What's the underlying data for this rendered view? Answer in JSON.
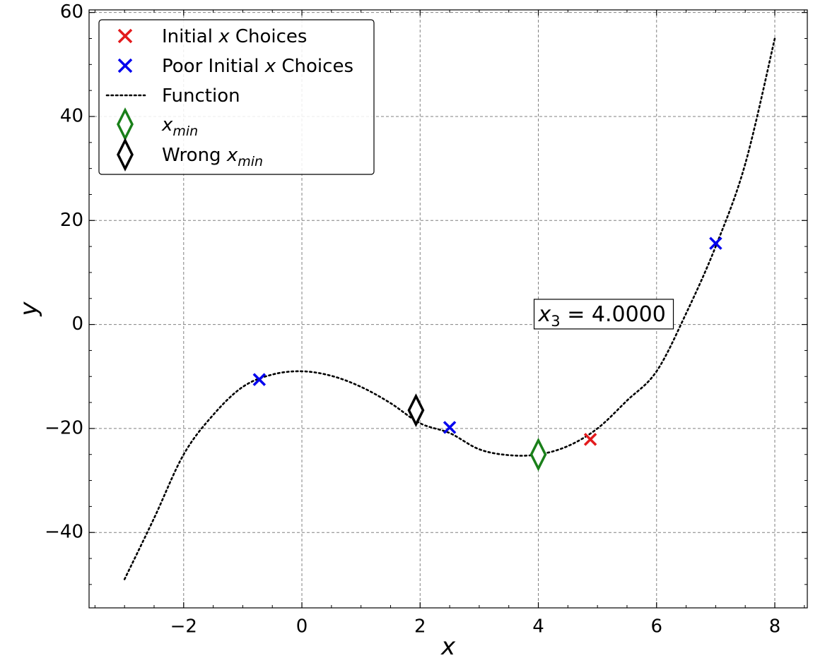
{
  "chart_data": {
    "type": "line",
    "title": "",
    "xlabel": "x",
    "ylabel": "y",
    "xlim": [
      -3.6,
      8.55
    ],
    "ylim": [
      -54.5,
      60.5
    ],
    "xticks": [
      -2,
      0,
      2,
      4,
      6,
      8
    ],
    "yticks": [
      -40,
      -20,
      0,
      20,
      40,
      60
    ],
    "xtick_labels": [
      "−2",
      "0",
      "2",
      "4",
      "6",
      "8"
    ],
    "ytick_labels": [
      "−40",
      "−20",
      "0",
      "20",
      "40",
      "60"
    ],
    "grid": true,
    "legend_position": "top-left",
    "function": {
      "name": "Function",
      "style": "dotted",
      "color": "#000000",
      "x": [
        -3.0,
        -2.5,
        -2.0,
        -1.5,
        -1.0,
        -0.5,
        0.0,
        0.5,
        1.0,
        1.5,
        2.0,
        2.5,
        3.0,
        3.5,
        4.0,
        4.5,
        5.0,
        5.5,
        6.0,
        6.5,
        7.0,
        7.5,
        8.0
      ],
      "y": [
        -49,
        -37.25,
        -25,
        -17.38,
        -12,
        -9.63,
        -9,
        -9.88,
        -12,
        -15.13,
        -19,
        -20.88,
        -24,
        -25.13,
        -25,
        -23.38,
        -20,
        -14.63,
        -9,
        2.13,
        15,
        30.88,
        55
      ]
    },
    "series": [
      {
        "name": "Initial x Choices",
        "marker": "x",
        "color": "#e31a1c",
        "x": [
          4.88
        ],
        "y": [
          -22.1
        ]
      },
      {
        "name": "Poor Initial x Choices",
        "marker": "x",
        "color": "#0000ee",
        "x": [
          -0.72,
          2.5,
          7.0
        ],
        "y": [
          -10.6,
          -19.8,
          15.6
        ]
      },
      {
        "name": "x_min",
        "marker": "diamond",
        "color": "#1a801a",
        "x": [
          4.0
        ],
        "y": [
          -25
        ]
      },
      {
        "name": "Wrong x_min",
        "marker": "diamond",
        "color": "#000000",
        "x": [
          1.93
        ],
        "y": [
          -16.5
        ]
      }
    ],
    "annotation": {
      "text_prefix": "x",
      "text_sub": "3",
      "text_value": " = 4.0000",
      "x": 4.0,
      "y": 0.5
    }
  },
  "legend": {
    "items": [
      {
        "key": "initial",
        "label_parts": [
          [
            "Initial ",
            false
          ],
          [
            "x",
            true
          ],
          [
            " Choices",
            false
          ]
        ]
      },
      {
        "key": "poor",
        "label_parts": [
          [
            "Poor Initial ",
            false
          ],
          [
            "x",
            true
          ],
          [
            " Choices",
            false
          ]
        ]
      },
      {
        "key": "function",
        "label_parts": [
          [
            "Function",
            false
          ]
        ]
      },
      {
        "key": "xmin",
        "label_parts": [
          [
            "x",
            true
          ]
        ],
        "sub": "min"
      },
      {
        "key": "wrong",
        "label_parts": [
          [
            "Wrong ",
            false
          ],
          [
            "x",
            true
          ]
        ],
        "sub": "min"
      }
    ]
  }
}
